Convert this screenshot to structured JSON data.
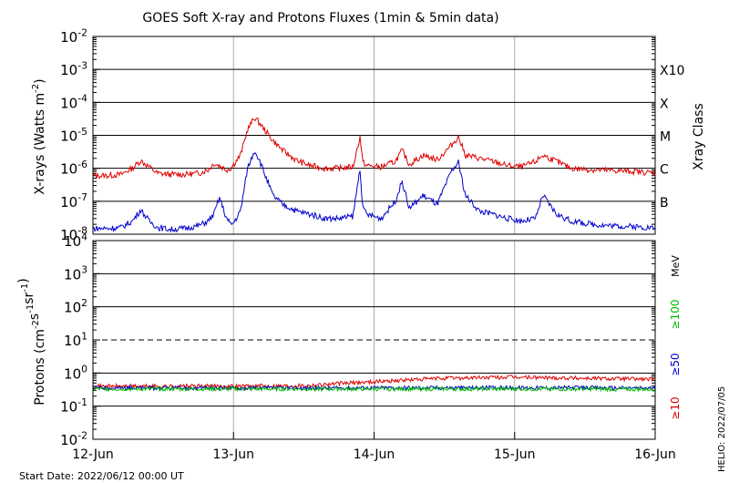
{
  "title": "GOES Soft X-ray and Protons Fluxes   (1min & 5min data)",
  "footer": {
    "start_date": "Start Date: 2022/06/12 00:00 UT",
    "credit": "HELIO: 2022/07/05"
  },
  "colors": {
    "xray_long": "#dd0000",
    "xray_short": "#0000cc",
    "proton_10": "#dd0000",
    "proton_50": "#0000cc",
    "proton_100": "#00bb00",
    "gridline": "#000000",
    "day_divider": "#aaaaaa"
  },
  "chart_data": [
    {
      "type": "line",
      "panel": "xray",
      "ylabel": "X-rays (Watts m",
      "ylabel_sup": "-2",
      "ylabel_close": ")",
      "yscale": "log",
      "ylim": [
        1e-08,
        0.01
      ],
      "yticks": [
        {
          "base": "10",
          "exp": "-2"
        },
        {
          "base": "10",
          "exp": "-3"
        },
        {
          "base": "10",
          "exp": "-4"
        },
        {
          "base": "10",
          "exp": "-5"
        },
        {
          "base": "10",
          "exp": "-6"
        },
        {
          "base": "10",
          "exp": "-7"
        },
        {
          "base": "10",
          "exp": "-8"
        }
      ],
      "xrange_days": [
        0,
        4
      ],
      "xticks": [
        "12-Jun",
        "13-Jun",
        "14-Jun",
        "15-Jun",
        "16-Jun"
      ],
      "right_axis_label": "Xray Class",
      "classes": [
        {
          "label": "X10",
          "value": 0.001
        },
        {
          "label": "X",
          "value": 0.0001
        },
        {
          "label": "M",
          "value": 1e-05
        },
        {
          "label": "C",
          "value": 1e-06
        },
        {
          "label": "B",
          "value": 1e-07
        }
      ],
      "series": [
        {
          "key": "long",
          "x": [
            0.0,
            0.1,
            0.2,
            0.28,
            0.34,
            0.4,
            0.46,
            0.55,
            0.65,
            0.75,
            0.82,
            0.86,
            0.9,
            0.95,
            0.98,
            1.0,
            1.05,
            1.1,
            1.15,
            1.18,
            1.22,
            1.28,
            1.35,
            1.45,
            1.55,
            1.65,
            1.75,
            1.85,
            1.9,
            1.92,
            1.95,
            2.05,
            2.15,
            2.2,
            2.25,
            2.35,
            2.45,
            2.55,
            2.6,
            2.65,
            2.75,
            2.85,
            2.95,
            3.05,
            3.15,
            3.2,
            3.3,
            3.4,
            3.55,
            3.7,
            3.85,
            3.95,
            4.0
          ],
          "y": [
            6e-07,
            6e-07,
            6.5e-07,
            1e-06,
            1.7e-06,
            1.1e-06,
            7e-07,
            6.5e-07,
            6.5e-07,
            7e-07,
            9e-07,
            1.4e-06,
            1.2e-06,
            9e-07,
            1e-06,
            1.3e-06,
            2.5e-06,
            1.5e-05,
            3.5e-05,
            2.5e-05,
            1.5e-05,
            7e-06,
            3.5e-06,
            1.7e-06,
            1.2e-06,
            1e-06,
            1e-06,
            1.1e-06,
            9e-06,
            1.5e-06,
            1.2e-06,
            1.1e-06,
            1.6e-06,
            3.5e-06,
            1.3e-06,
            2.5e-06,
            1.8e-06,
            5e-06,
            9e-06,
            2.5e-06,
            2e-06,
            1.6e-06,
            1.2e-06,
            1.1e-06,
            1.6e-06,
            2.5e-06,
            1.6e-06,
            1e-06,
            9e-07,
            8.5e-07,
            8e-07,
            7.5e-07,
            7e-07
          ]
        },
        {
          "key": "short",
          "x": [
            0.0,
            0.1,
            0.2,
            0.28,
            0.34,
            0.4,
            0.46,
            0.55,
            0.65,
            0.75,
            0.82,
            0.86,
            0.9,
            0.95,
            0.98,
            1.0,
            1.05,
            1.1,
            1.15,
            1.18,
            1.22,
            1.28,
            1.35,
            1.45,
            1.55,
            1.65,
            1.75,
            1.85,
            1.9,
            1.92,
            1.95,
            2.05,
            2.15,
            2.2,
            2.25,
            2.35,
            2.45,
            2.55,
            2.6,
            2.65,
            2.75,
            2.85,
            2.95,
            3.05,
            3.15,
            3.2,
            3.3,
            3.4,
            3.55,
            3.7,
            3.85,
            3.95,
            4.0
          ],
          "y": [
            1.5e-08,
            1.5e-08,
            1.6e-08,
            2.5e-08,
            5.5e-08,
            2.5e-08,
            1.6e-08,
            1.4e-08,
            1.5e-08,
            1.8e-08,
            2.5e-08,
            4e-08,
            1.3e-07,
            3e-08,
            2e-08,
            2.2e-08,
            5e-08,
            1e-06,
            3.5e-06,
            2e-06,
            7e-07,
            1.5e-07,
            8e-08,
            5e-08,
            4e-08,
            3e-08,
            3e-08,
            3.5e-08,
            1e-06,
            6e-08,
            4e-08,
            3e-08,
            1e-07,
            4e-07,
            6e-08,
            1.5e-07,
            8e-08,
            8e-07,
            1.5e-06,
            1.5e-07,
            5e-08,
            4e-08,
            3e-08,
            2.5e-08,
            3e-08,
            1.5e-07,
            4e-08,
            2.5e-08,
            2e-08,
            1.8e-08,
            1.7e-08,
            1.6e-08,
            1.5e-08
          ]
        }
      ]
    },
    {
      "type": "line",
      "panel": "protons",
      "ylabel": "Protons (cm",
      "ylabel_parts": [
        {
          "text": "Protons (cm",
          "sup": ""
        },
        {
          "text": "",
          "sup": "-2"
        },
        {
          "text": "s",
          "sup": "-1"
        },
        {
          "text": "sr",
          "sup": "-1"
        },
        {
          "text": ")",
          "sup": ""
        }
      ],
      "yscale": "log",
      "ylim": [
        0.01,
        10000.0
      ],
      "yticks": [
        {
          "base": "10",
          "exp": "4"
        },
        {
          "base": "10",
          "exp": "3"
        },
        {
          "base": "10",
          "exp": "2"
        },
        {
          "base": "10",
          "exp": "1"
        },
        {
          "base": "10",
          "exp": "0"
        },
        {
          "base": "10",
          "exp": "-1"
        },
        {
          "base": "10",
          "exp": "-2"
        }
      ],
      "threshold": 10,
      "xrange_days": [
        0,
        4
      ],
      "xticks": [
        "12-Jun",
        "13-Jun",
        "14-Jun",
        "15-Jun",
        "16-Jun"
      ],
      "unit_label": "MeV",
      "series": [
        {
          "key": "p10",
          "name": "≥10",
          "x": [
            0,
            0.5,
            1,
            1.5,
            2,
            2.5,
            3,
            3.5,
            4
          ],
          "y": [
            0.4,
            0.4,
            0.4,
            0.42,
            0.55,
            0.7,
            0.75,
            0.7,
            0.65
          ]
        },
        {
          "key": "p50",
          "name": "≥50",
          "x": [
            0,
            0.5,
            1,
            1.5,
            2,
            2.5,
            3,
            3.5,
            4
          ],
          "y": [
            0.36,
            0.35,
            0.35,
            0.35,
            0.36,
            0.36,
            0.36,
            0.36,
            0.35
          ]
        },
        {
          "key": "p100",
          "name": "≥100",
          "x": [
            0,
            0.5,
            1,
            1.5,
            2,
            2.5,
            3,
            3.5,
            4
          ],
          "y": [
            0.33,
            0.33,
            0.33,
            0.33,
            0.33,
            0.33,
            0.33,
            0.33,
            0.32
          ]
        }
      ]
    }
  ]
}
